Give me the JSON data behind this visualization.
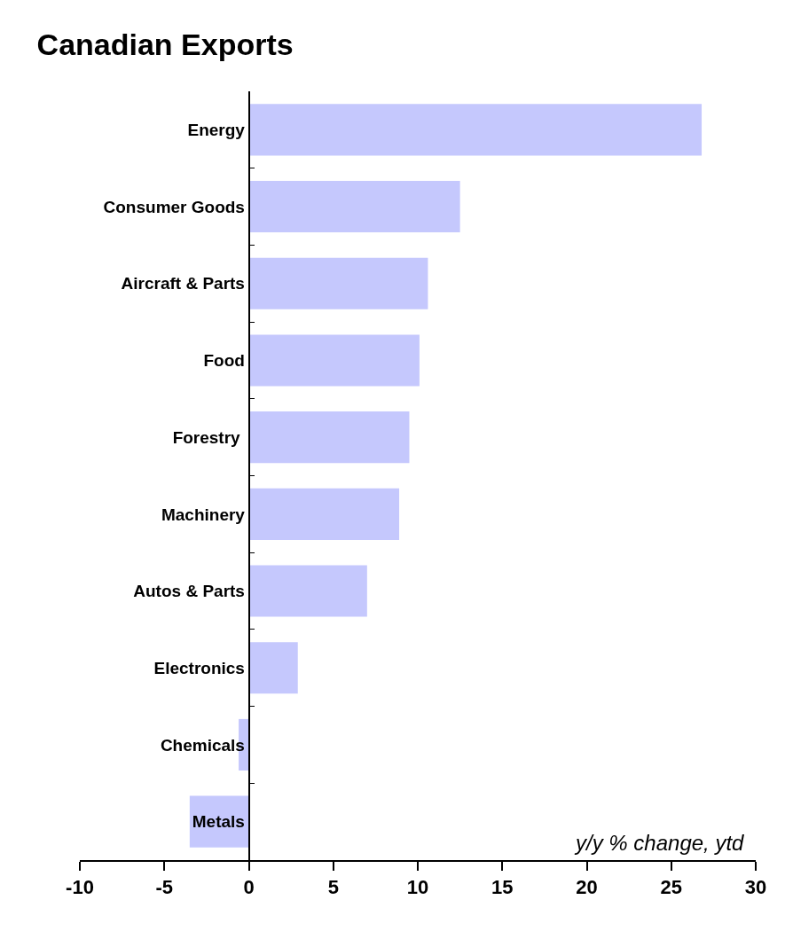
{
  "chart_data": {
    "type": "bar",
    "orientation": "horizontal",
    "title": "Canadian Exports",
    "categories": [
      "Energy",
      "Consumer Goods",
      "Aircraft & Parts",
      "Food",
      "Forestry ",
      "Machinery",
      "Autos & Parts",
      "Electronics",
      "Chemicals",
      "Metals"
    ],
    "values": [
      26.8,
      12.5,
      10.6,
      10.1,
      9.5,
      8.9,
      7.0,
      2.9,
      -0.6,
      -3.5
    ],
    "color": "#c5c8fd",
    "xlim": [
      -10,
      30
    ],
    "xticks": [
      -10,
      -5,
      0,
      5,
      10,
      15,
      20,
      25,
      30
    ],
    "annotations": [
      "y/y % change, ytd"
    ],
    "legend": false
  }
}
